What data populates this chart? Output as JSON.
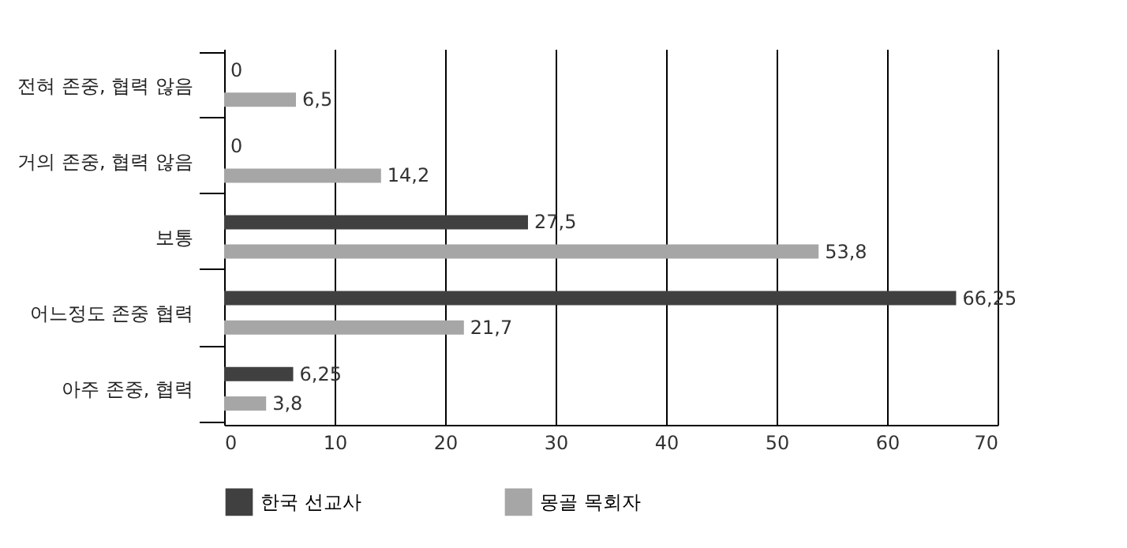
{
  "chart_data": {
    "type": "bar",
    "orientation": "horizontal",
    "categories": [
      "전혀 존중, 협력 않음",
      "거의 존중, 협력 않음",
      "보통",
      "어느정도 존중 협력",
      "아주 존중, 협력"
    ],
    "series": [
      {
        "name": "한국 선교사",
        "color": "#404040",
        "values": [
          0,
          0,
          27.5,
          66.25,
          6.25
        ],
        "value_labels": [
          "0",
          "0",
          "27,5",
          "66,25",
          "6,25"
        ]
      },
      {
        "name": "몽골 목회자",
        "color": "#a6a6a6",
        "values": [
          6.5,
          14.2,
          53.8,
          21.7,
          3.8
        ],
        "value_labels": [
          "6,5",
          "14,2",
          "53,8",
          "21,7",
          "3,8"
        ]
      }
    ],
    "xlim": [
      0,
      70
    ],
    "xticks": [
      0,
      10,
      20,
      30,
      40,
      50,
      60,
      70
    ],
    "grid": "x",
    "legend": "bottom"
  }
}
